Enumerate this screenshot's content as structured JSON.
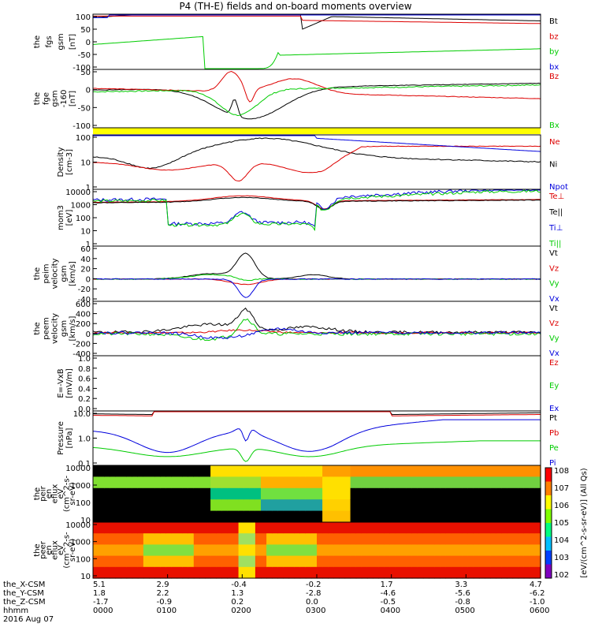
{
  "title": "P4 (TH-E) fields and on-board moments overview",
  "colors": {
    "black": "#000000",
    "red": "#dd0000",
    "green": "#00cc00",
    "blue": "#0000dd",
    "yellow": "#ffff00"
  },
  "panels": [
    {
      "id": "fgs",
      "ylabel": [
        "the",
        "fgs",
        "gsm",
        "[nT]"
      ],
      "ticks": [
        "100",
        "50",
        "0",
        "-50",
        "-100"
      ],
      "legend": [
        {
          "t": "Bt",
          "c": "black"
        },
        {
          "t": "bz",
          "c": "red"
        },
        {
          "t": "by",
          "c": "green"
        },
        {
          "t": "bx",
          "c": "blue"
        }
      ]
    },
    {
      "id": "fge",
      "ylabel": [
        "the",
        "fge",
        "gsm",
        "-160",
        "[nT]"
      ],
      "ticks": [
        "50",
        "0",
        "-50",
        "-100"
      ],
      "legend": [
        {
          "t": "Bz",
          "c": "red"
        },
        {
          "t": "Bx",
          "c": "green"
        }
      ]
    },
    {
      "id": "density",
      "ylabel": [
        "Density",
        "[cm-3]"
      ],
      "ticks": [
        "100",
        "10",
        "1"
      ],
      "legend": [
        {
          "t": "Ne",
          "c": "red"
        },
        {
          "t": "Ni",
          "c": "black"
        },
        {
          "t": "Npot",
          "c": "blue"
        }
      ]
    },
    {
      "id": "temp",
      "ylabel": [
        "mom3",
        "[eV]"
      ],
      "ticks": [
        "10000",
        "1000",
        "100",
        "10",
        "1"
      ],
      "legend": [
        {
          "t": "Te⊥",
          "c": "red"
        },
        {
          "t": "Te||",
          "c": "black"
        },
        {
          "t": "Ti⊥",
          "c": "blue"
        },
        {
          "t": "Ti||",
          "c": "green"
        }
      ]
    },
    {
      "id": "peim",
      "ylabel": [
        "the",
        "peim",
        "velocity",
        "gsm",
        "[km/s]"
      ],
      "ticks": [
        "60",
        "40",
        "20",
        "0",
        "-20",
        "-40"
      ],
      "legend": [
        {
          "t": "Vt",
          "c": "black"
        },
        {
          "t": "Vz",
          "c": "red"
        },
        {
          "t": "Vy",
          "c": "green"
        },
        {
          "t": "Vx",
          "c": "blue"
        }
      ]
    },
    {
      "id": "peem",
      "ylabel": [
        "the",
        "peem",
        "velocity",
        "gsm",
        "[km/s]"
      ],
      "ticks": [
        "600",
        "400",
        "200",
        "0",
        "-200",
        "-400"
      ],
      "legend": [
        {
          "t": "Vt",
          "c": "black"
        },
        {
          "t": "Vz",
          "c": "red"
        },
        {
          "t": "Vy",
          "c": "green"
        },
        {
          "t": "Vx",
          "c": "blue"
        }
      ]
    },
    {
      "id": "efield",
      "ylabel": [
        "E=-VxB",
        "[mV/m]"
      ],
      "ticks": [
        "1.0",
        "0.8",
        "0.6",
        "0.4",
        "0.2",
        "0.0"
      ],
      "legend": [
        {
          "t": "Ez",
          "c": "red"
        },
        {
          "t": "Ey",
          "c": "green"
        },
        {
          "t": "Ex",
          "c": "blue"
        }
      ]
    },
    {
      "id": "pressure",
      "ylabel": [
        "Pressure",
        "[nPa]"
      ],
      "ticks": [
        "10.0",
        "1.0",
        "0.1"
      ],
      "legend": [
        {
          "t": "Pt",
          "c": "black"
        },
        {
          "t": "Pb",
          "c": "red"
        },
        {
          "t": "Pe",
          "c": "green"
        },
        {
          "t": "Pi",
          "c": "blue"
        }
      ]
    },
    {
      "id": "peir",
      "ylabel": [
        "the",
        "peir",
        "en",
        "eflux",
        "eV",
        "(cm^2-s-",
        "sr-eV)"
      ],
      "ticks": [
        "10000",
        "1000",
        "100",
        "10"
      ],
      "legend": []
    },
    {
      "id": "peer",
      "ylabel": [
        "the",
        "peer",
        "en",
        "eflux",
        "eV",
        "(cm^2-s-",
        "sr-eV)"
      ],
      "ticks": [
        "10000",
        "1000",
        "100",
        "10"
      ],
      "legend": []
    }
  ],
  "colorbar": {
    "ticks": [
      "10^8",
      "10^7",
      "10^6",
      "10^5",
      "10^4",
      "10^3",
      "10^2"
    ],
    "label": "[eV/(cm^2-s-sr-eV)] (All Qs)"
  },
  "xaxis": {
    "rows": [
      {
        "name": "the_X-CSM",
        "vals": [
          "5.1",
          "2.9",
          "-0.4",
          "-0.2",
          "1.7",
          "3.3",
          "4.7"
        ]
      },
      {
        "name": "the_Y-CSM",
        "vals": [
          "1.8",
          "2.2",
          "1.3",
          "-2.8",
          "-4.6",
          "-5.6",
          "-6.2"
        ]
      },
      {
        "name": "the_Z-CSM",
        "vals": [
          "-1.7",
          "-0.9",
          "0.2",
          "0.0",
          "-0.5",
          "-0.8",
          "-1.0"
        ]
      },
      {
        "name": "hhmm",
        "vals": [
          "0000",
          "0100",
          "0200",
          "0300",
          "0400",
          "0500",
          "0600"
        ]
      }
    ],
    "date": "2016 Aug 07"
  },
  "chart_data": {
    "type": "line",
    "title": "P4 (TH-E) fields and on-board moments overview",
    "x_hhmm": [
      "0000",
      "0100",
      "0200",
      "0300",
      "0400",
      "0500",
      "0600"
    ],
    "note_panels": [
      "fgs",
      "fge",
      "density",
      "mom3",
      "peim",
      "peem",
      "E=-VxB",
      "Pressure",
      "peir",
      "peer"
    ]
  }
}
